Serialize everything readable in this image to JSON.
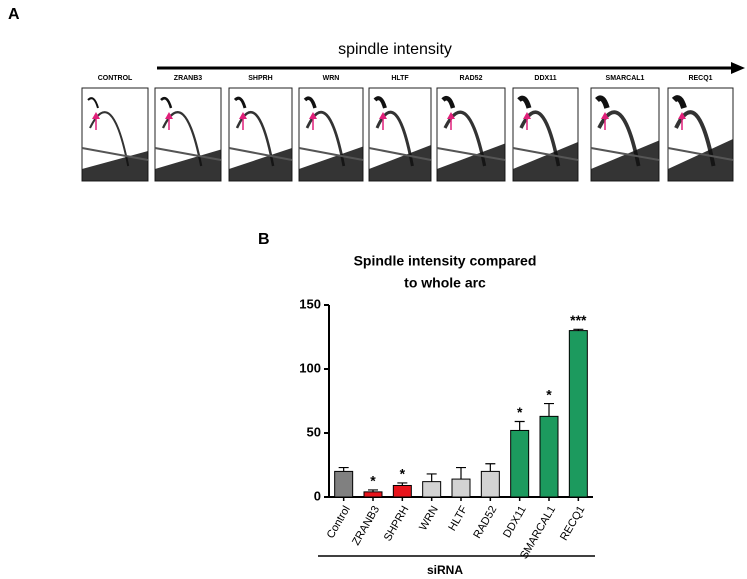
{
  "panel_a": {
    "label": "A",
    "arrow_label": "spindle intensity",
    "lanes": [
      "CONTROL",
      "ZRANB3",
      "SHPRH",
      "WRN",
      "HLTF",
      "RAD52",
      "DDX11",
      "SMARCAL1",
      "RECQ1"
    ]
  },
  "chart_data": {
    "type": "bar",
    "panel_label": "B",
    "title_lines": [
      "Spindle intensity compared",
      "to whole arc"
    ],
    "xlabel": "siRNA",
    "categories": [
      "Control",
      "ZRANB3",
      "SHPRH",
      "WRN",
      "HLTF",
      "RAD52",
      "DDX11",
      "SMARCAL1",
      "RECQ1"
    ],
    "values": [
      20,
      4,
      9,
      12,
      14,
      20,
      52,
      63,
      130
    ],
    "errors": [
      3,
      1.5,
      2,
      6,
      9,
      6,
      7,
      10,
      1
    ],
    "colors": [
      "#808080",
      "#e8141c",
      "#e8141c",
      "#d3d3d3",
      "#d3d3d3",
      "#d3d3d3",
      "#1c9a5e",
      "#1c9a5e",
      "#1c9a5e"
    ],
    "significance": [
      null,
      "*",
      "*",
      null,
      null,
      null,
      "*",
      "*",
      "***"
    ],
    "ylim": [
      0,
      150
    ],
    "yticks": [
      0,
      50,
      100,
      150
    ]
  }
}
